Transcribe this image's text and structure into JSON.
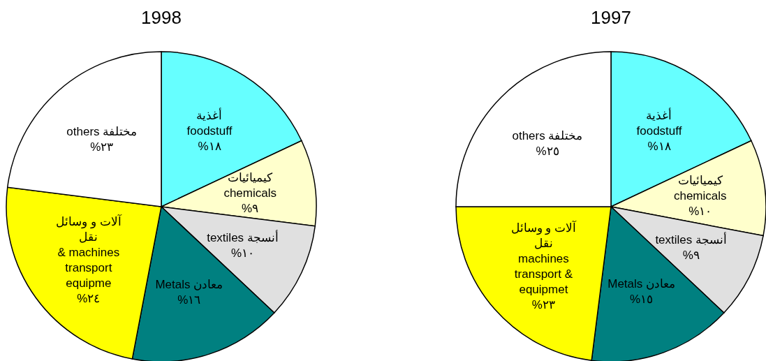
{
  "chart_data": [
    {
      "type": "pie",
      "title": "1998",
      "categories": [
        "أغذية\nfoodstuff",
        "كيميائيات\nchemicals",
        "textiles أنسجة",
        "Metals معادن",
        "آلات و وسائل\nنقل\n& machines\ntransport\nequipme",
        "others مختلفة"
      ],
      "values": [
        18,
        9,
        10,
        16,
        24,
        23
      ],
      "value_labels": [
        "%١٨",
        "%٩",
        "%١٠",
        "%١٦",
        "%٢٤",
        "%٢٣"
      ],
      "colors": [
        "#66ffff",
        "#ffffcc",
        "#e0e0e0",
        "#008080",
        "#ffff00",
        "#ffffff"
      ]
    },
    {
      "type": "pie",
      "title": "1997",
      "categories": [
        "أغذية\nfoodstuff",
        "كيميائيات\nchemicals",
        "textiles أنسجة",
        "Metals معادن",
        "آلات و وسائل\nنقل\nmachines\ntransport &\nequipmet",
        "others مختلفة"
      ],
      "values": [
        18,
        10,
        9,
        15,
        23,
        25
      ],
      "value_labels": [
        "%١٨",
        "%١٠",
        "%٩",
        "%١٥",
        "%٢٣",
        "%٢٥"
      ],
      "colors": [
        "#66ffff",
        "#ffffcc",
        "#e0e0e0",
        "#008080",
        "#ffff00",
        "#ffffff"
      ]
    }
  ]
}
